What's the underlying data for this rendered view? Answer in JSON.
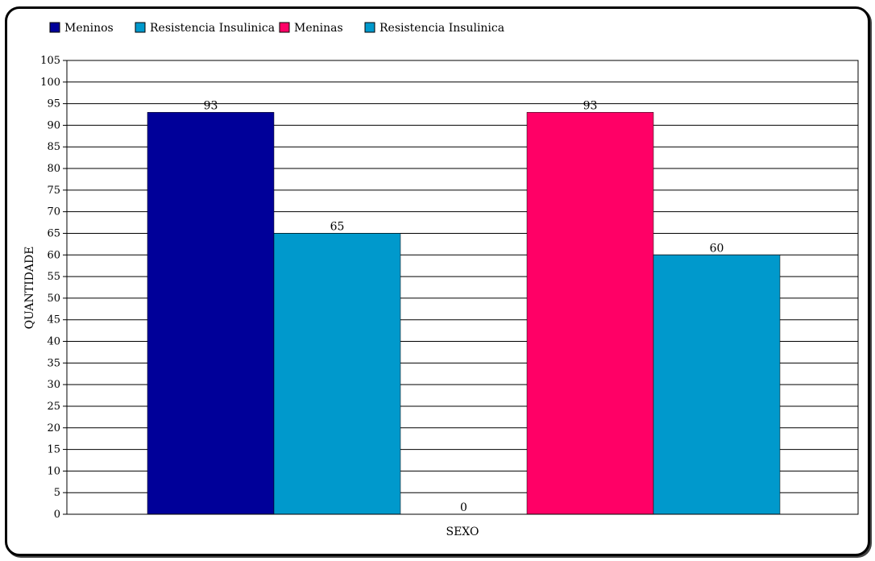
{
  "chart_data": {
    "type": "bar",
    "title": "",
    "xlabel": "SEXO",
    "ylabel": "QUANTIDADE",
    "ylim": [
      0,
      105
    ],
    "ytick_step": 5,
    "grid": true,
    "legend_position": "top-left",
    "series": [
      {
        "name": "Meninos",
        "value": 93,
        "color": "#000099"
      },
      {
        "name": "Resistencia Insulinica",
        "value": 65,
        "color": "#0099cc"
      },
      {
        "name": "",
        "value": 0,
        "color": "#ffffff"
      },
      {
        "name": "Meninas",
        "value": 93,
        "color": "#ff0066"
      },
      {
        "name": "Resistencia Insulinica",
        "value": 60,
        "color": "#0099cc"
      }
    ],
    "legend": [
      {
        "label": "Meninos",
        "color": "#000099"
      },
      {
        "label": "Resistencia Insulinica",
        "color": "#0099cc"
      },
      {
        "label": "Meninas",
        "color": "#ff0066"
      },
      {
        "label": "Resistencia Insulinica",
        "color": "#0099cc"
      }
    ]
  }
}
